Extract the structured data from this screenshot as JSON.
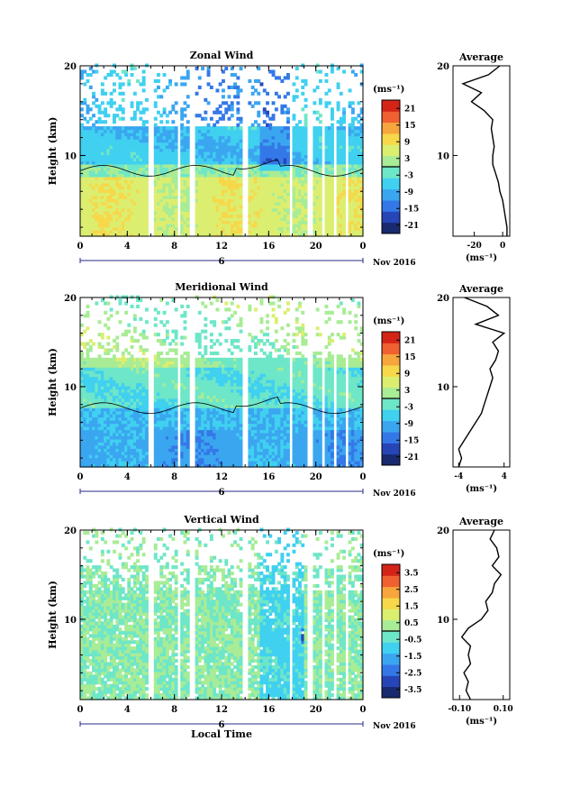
{
  "figure": {
    "date_label": "Nov 2016",
    "day_label": "6",
    "xlabel": "Local Time"
  },
  "colorscale": [
    "#1a2a6e",
    "#2646b8",
    "#3478e8",
    "#3ba6f0",
    "#40d0f0",
    "#6ee6c8",
    "#a8ec96",
    "#dcee70",
    "#f6d84a",
    "#f6a63c",
    "#f06030",
    "#d42418"
  ],
  "chart_data": [
    {
      "type": "heatmap",
      "title": "Zonal Wind",
      "xlabel": "",
      "ylabel": "Height (km)",
      "x_ticks": [
        "0",
        "4",
        "8",
        "12",
        "16",
        "20",
        "0"
      ],
      "xlim": [
        0,
        24
      ],
      "y_ticks": [
        "10",
        "20"
      ],
      "ylim": [
        1,
        20
      ],
      "colorbar": {
        "unit": "(ms⁻¹)",
        "ticks": [
          "21",
          "15",
          "9",
          "3",
          "-3",
          "-9",
          "-15",
          "-21"
        ],
        "range": [
          -24,
          24
        ]
      },
      "gaps": [
        [
          5.75,
          6.2
        ],
        [
          8.2,
          8.5
        ],
        [
          9.2,
          9.6
        ],
        [
          13.7,
          14.15
        ],
        [
          17.65,
          17.95
        ],
        [
          19.2,
          19.55
        ],
        [
          20.35,
          20.7
        ],
        [
          21.3,
          21.7
        ],
        [
          22.4,
          22.7
        ]
      ],
      "profile": {
        "title": "Average",
        "xlabel": "(ms⁻¹)",
        "x_ticks": [
          "-20",
          "0"
        ],
        "xlim": [
          -35,
          5
        ],
        "heights": [
          1,
          2,
          3,
          4,
          5,
          6,
          7,
          8,
          9,
          10,
          11,
          12,
          13,
          14,
          15,
          16,
          17,
          18,
          19,
          20
        ],
        "values": [
          3,
          3,
          2,
          1,
          0,
          -2,
          -3,
          -5,
          -7,
          -7,
          -6,
          -7,
          -8,
          -7,
          -13,
          -22,
          -15,
          -28,
          -10,
          -2
        ]
      }
    },
    {
      "type": "heatmap",
      "title": "Meridional Wind",
      "xlabel": "",
      "ylabel": "Height (km)",
      "x_ticks": [
        "0",
        "4",
        "8",
        "12",
        "16",
        "20",
        "0"
      ],
      "xlim": [
        0,
        24
      ],
      "y_ticks": [
        "10",
        "20"
      ],
      "ylim": [
        1,
        20
      ],
      "colorbar": {
        "unit": "(ms⁻¹)",
        "ticks": [
          "21",
          "15",
          "9",
          "3",
          "-3",
          "-9",
          "-15",
          "-21"
        ],
        "range": [
          -24,
          24
        ]
      },
      "gaps": [
        [
          5.75,
          6.2
        ],
        [
          8.2,
          8.5
        ],
        [
          9.2,
          9.6
        ],
        [
          13.7,
          14.15
        ],
        [
          17.65,
          17.95
        ],
        [
          19.2,
          19.55
        ],
        [
          20.35,
          20.7
        ],
        [
          21.3,
          21.7
        ],
        [
          22.4,
          22.7
        ]
      ],
      "profile": {
        "title": "Average",
        "xlabel": "(ms⁻¹)",
        "x_ticks": [
          "-4",
          "4"
        ],
        "xlim": [
          -5,
          5
        ],
        "heights": [
          1,
          2,
          3,
          4,
          5,
          6,
          7,
          8,
          9,
          10,
          11,
          12,
          13,
          14,
          15,
          16,
          17,
          18,
          19,
          20
        ],
        "values": [
          -4,
          -3.5,
          -4,
          -3,
          -2,
          -1,
          0,
          0.5,
          1,
          1.5,
          2,
          1.5,
          2.5,
          3,
          2,
          4,
          -1,
          3,
          1,
          -3
        ]
      }
    },
    {
      "type": "heatmap",
      "title": "Vertical Wind",
      "xlabel": "Local Time",
      "ylabel": "Height (km)",
      "x_ticks": [
        "0",
        "4",
        "8",
        "12",
        "16",
        "20",
        "0"
      ],
      "xlim": [
        0,
        24
      ],
      "y_ticks": [
        "10",
        "20"
      ],
      "ylim": [
        1,
        20
      ],
      "colorbar": {
        "unit": "(ms⁻¹)",
        "ticks": [
          "3.5",
          "2.5",
          "1.5",
          "0.5",
          "-0.5",
          "-1.5",
          "-2.5",
          "-3.5"
        ],
        "range": [
          -4,
          4
        ]
      },
      "gaps": [
        [
          5.75,
          6.2
        ],
        [
          8.2,
          8.5
        ],
        [
          9.2,
          9.6
        ],
        [
          13.7,
          14.15
        ],
        [
          17.65,
          17.95
        ],
        [
          19.2,
          19.55
        ],
        [
          20.35,
          20.7
        ],
        [
          21.3,
          21.7
        ],
        [
          22.4,
          22.7
        ]
      ],
      "profile": {
        "title": "Average",
        "xlabel": "(ms⁻¹)",
        "x_ticks": [
          "-0.10",
          "0.10"
        ],
        "xlim": [
          -0.13,
          0.13
        ],
        "heights": [
          1,
          2,
          3,
          4,
          5,
          6,
          7,
          8,
          9,
          10,
          11,
          12,
          13,
          14,
          15,
          16,
          17,
          18,
          19,
          20
        ],
        "values": [
          -0.05,
          -0.07,
          -0.06,
          -0.08,
          -0.05,
          -0.06,
          -0.05,
          -0.09,
          -0.06,
          0.0,
          0.03,
          0.02,
          0.05,
          0.06,
          0.09,
          0.05,
          0.08,
          0.07,
          0.04,
          0.06
        ]
      }
    }
  ]
}
